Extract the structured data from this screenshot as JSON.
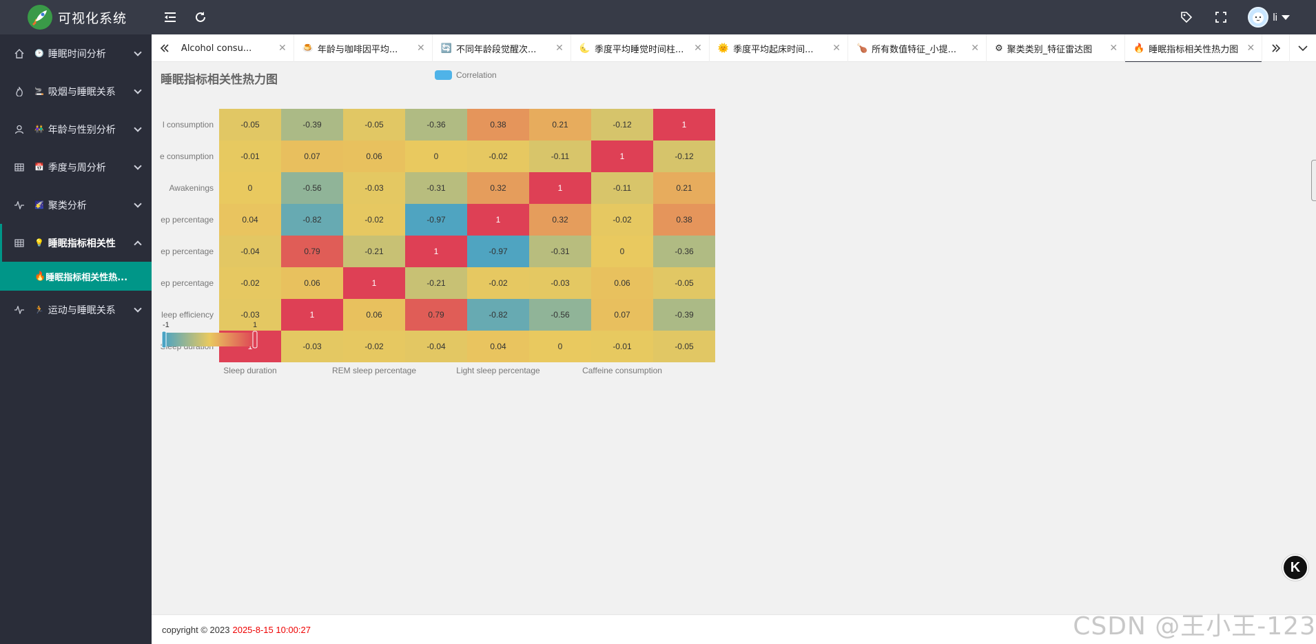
{
  "app": {
    "title": "可视化系统"
  },
  "header": {
    "user_name": "li",
    "icons": [
      "menu-fold-icon",
      "refresh-icon",
      "tag-icon",
      "fullscreen-icon"
    ]
  },
  "sidebar": {
    "items": [
      {
        "label": "睡眠时间分析",
        "emoji": "🕑",
        "icon": "home-icon"
      },
      {
        "label": "吸烟与睡眠关系",
        "emoji": "🚬",
        "icon": "fire-icon"
      },
      {
        "label": "年龄与性别分析",
        "emoji": "👫",
        "icon": "user-icon"
      },
      {
        "label": "季度与周分析",
        "emoji": "📅",
        "icon": "grid-icon"
      },
      {
        "label": "聚类分析",
        "emoji": "🌠",
        "icon": "pulse-icon"
      },
      {
        "label": "睡眠指标相关性",
        "emoji": "💡",
        "icon": "grid-icon"
      },
      {
        "label": "运动与睡眠关系",
        "emoji": "🏃",
        "icon": "pulse-icon"
      }
    ],
    "active_sub": {
      "label": "睡眠指标相关性热...",
      "emoji": "🔥"
    }
  },
  "tabs": [
    {
      "label": "Alcohol consu...",
      "emoji": ""
    },
    {
      "label": "年龄与咖啡因平均...",
      "emoji": "🍮"
    },
    {
      "label": "不同年龄段觉醒次...",
      "emoji": "🔄"
    },
    {
      "label": "季度平均睡觉时间柱...",
      "emoji": "🌜"
    },
    {
      "label": "季度平均起床时间...",
      "emoji": "🌞"
    },
    {
      "label": "所有数值特征_小提...",
      "emoji": "🍗"
    },
    {
      "label": "聚类类别_特征雷达图",
      "emoji": "⚙"
    },
    {
      "label": "睡眠指标相关性热力图",
      "emoji": "🔥"
    }
  ],
  "chart_data": {
    "type": "heatmap",
    "title": "睡眠指标相关性热力图",
    "legend": "Correlation",
    "x_categories": [
      "Sleep duration",
      "Sleep efficiency",
      "REM sleep percentage",
      "Deep sleep percentage",
      "Light sleep percentage",
      "Awakenings",
      "Caffeine consumption",
      "Alcohol consumption"
    ],
    "x_tick_labels_visible": [
      "Sleep duration",
      "",
      "REM sleep percentage",
      "",
      "Light sleep percentage",
      "",
      "Caffeine consumption",
      ""
    ],
    "y_tick_labels_visible": [
      "Sleep duration",
      "leep efficiency",
      "ep percentage",
      "ep percentage",
      "ep percentage",
      "Awakenings",
      "e consumption",
      "l consumption"
    ],
    "matrix": [
      [
        1,
        -0.03,
        -0.02,
        -0.04,
        0.04,
        0,
        -0.01,
        -0.05
      ],
      [
        -0.03,
        1,
        0.06,
        0.79,
        -0.82,
        -0.56,
        0.07,
        -0.39
      ],
      [
        -0.02,
        0.06,
        1,
        -0.21,
        -0.02,
        -0.03,
        0.06,
        -0.05
      ],
      [
        -0.04,
        0.79,
        -0.21,
        1,
        -0.97,
        -0.31,
        0,
        -0.36
      ],
      [
        0.04,
        -0.82,
        -0.02,
        -0.97,
        1,
        0.32,
        -0.02,
        0.38
      ],
      [
        0,
        -0.56,
        -0.03,
        -0.31,
        0.32,
        1,
        -0.11,
        0.21
      ],
      [
        -0.01,
        0.07,
        0.06,
        0,
        -0.02,
        -0.11,
        1,
        -0.12
      ],
      [
        -0.05,
        -0.39,
        -0.05,
        -0.36,
        0.38,
        0.21,
        -0.12,
        1
      ]
    ],
    "visual_map": {
      "min": -1,
      "max": 1,
      "min_label": "-1",
      "max_label": "1",
      "colors": [
        "#4aa3c4",
        "#e9c95f",
        "#de4055"
      ]
    }
  },
  "footer": {
    "copyright": "copyright © 2023",
    "timestamp": "2025-8-15 10:00:27"
  },
  "watermark": "CSDN @王小王-123",
  "float_button": "K"
}
